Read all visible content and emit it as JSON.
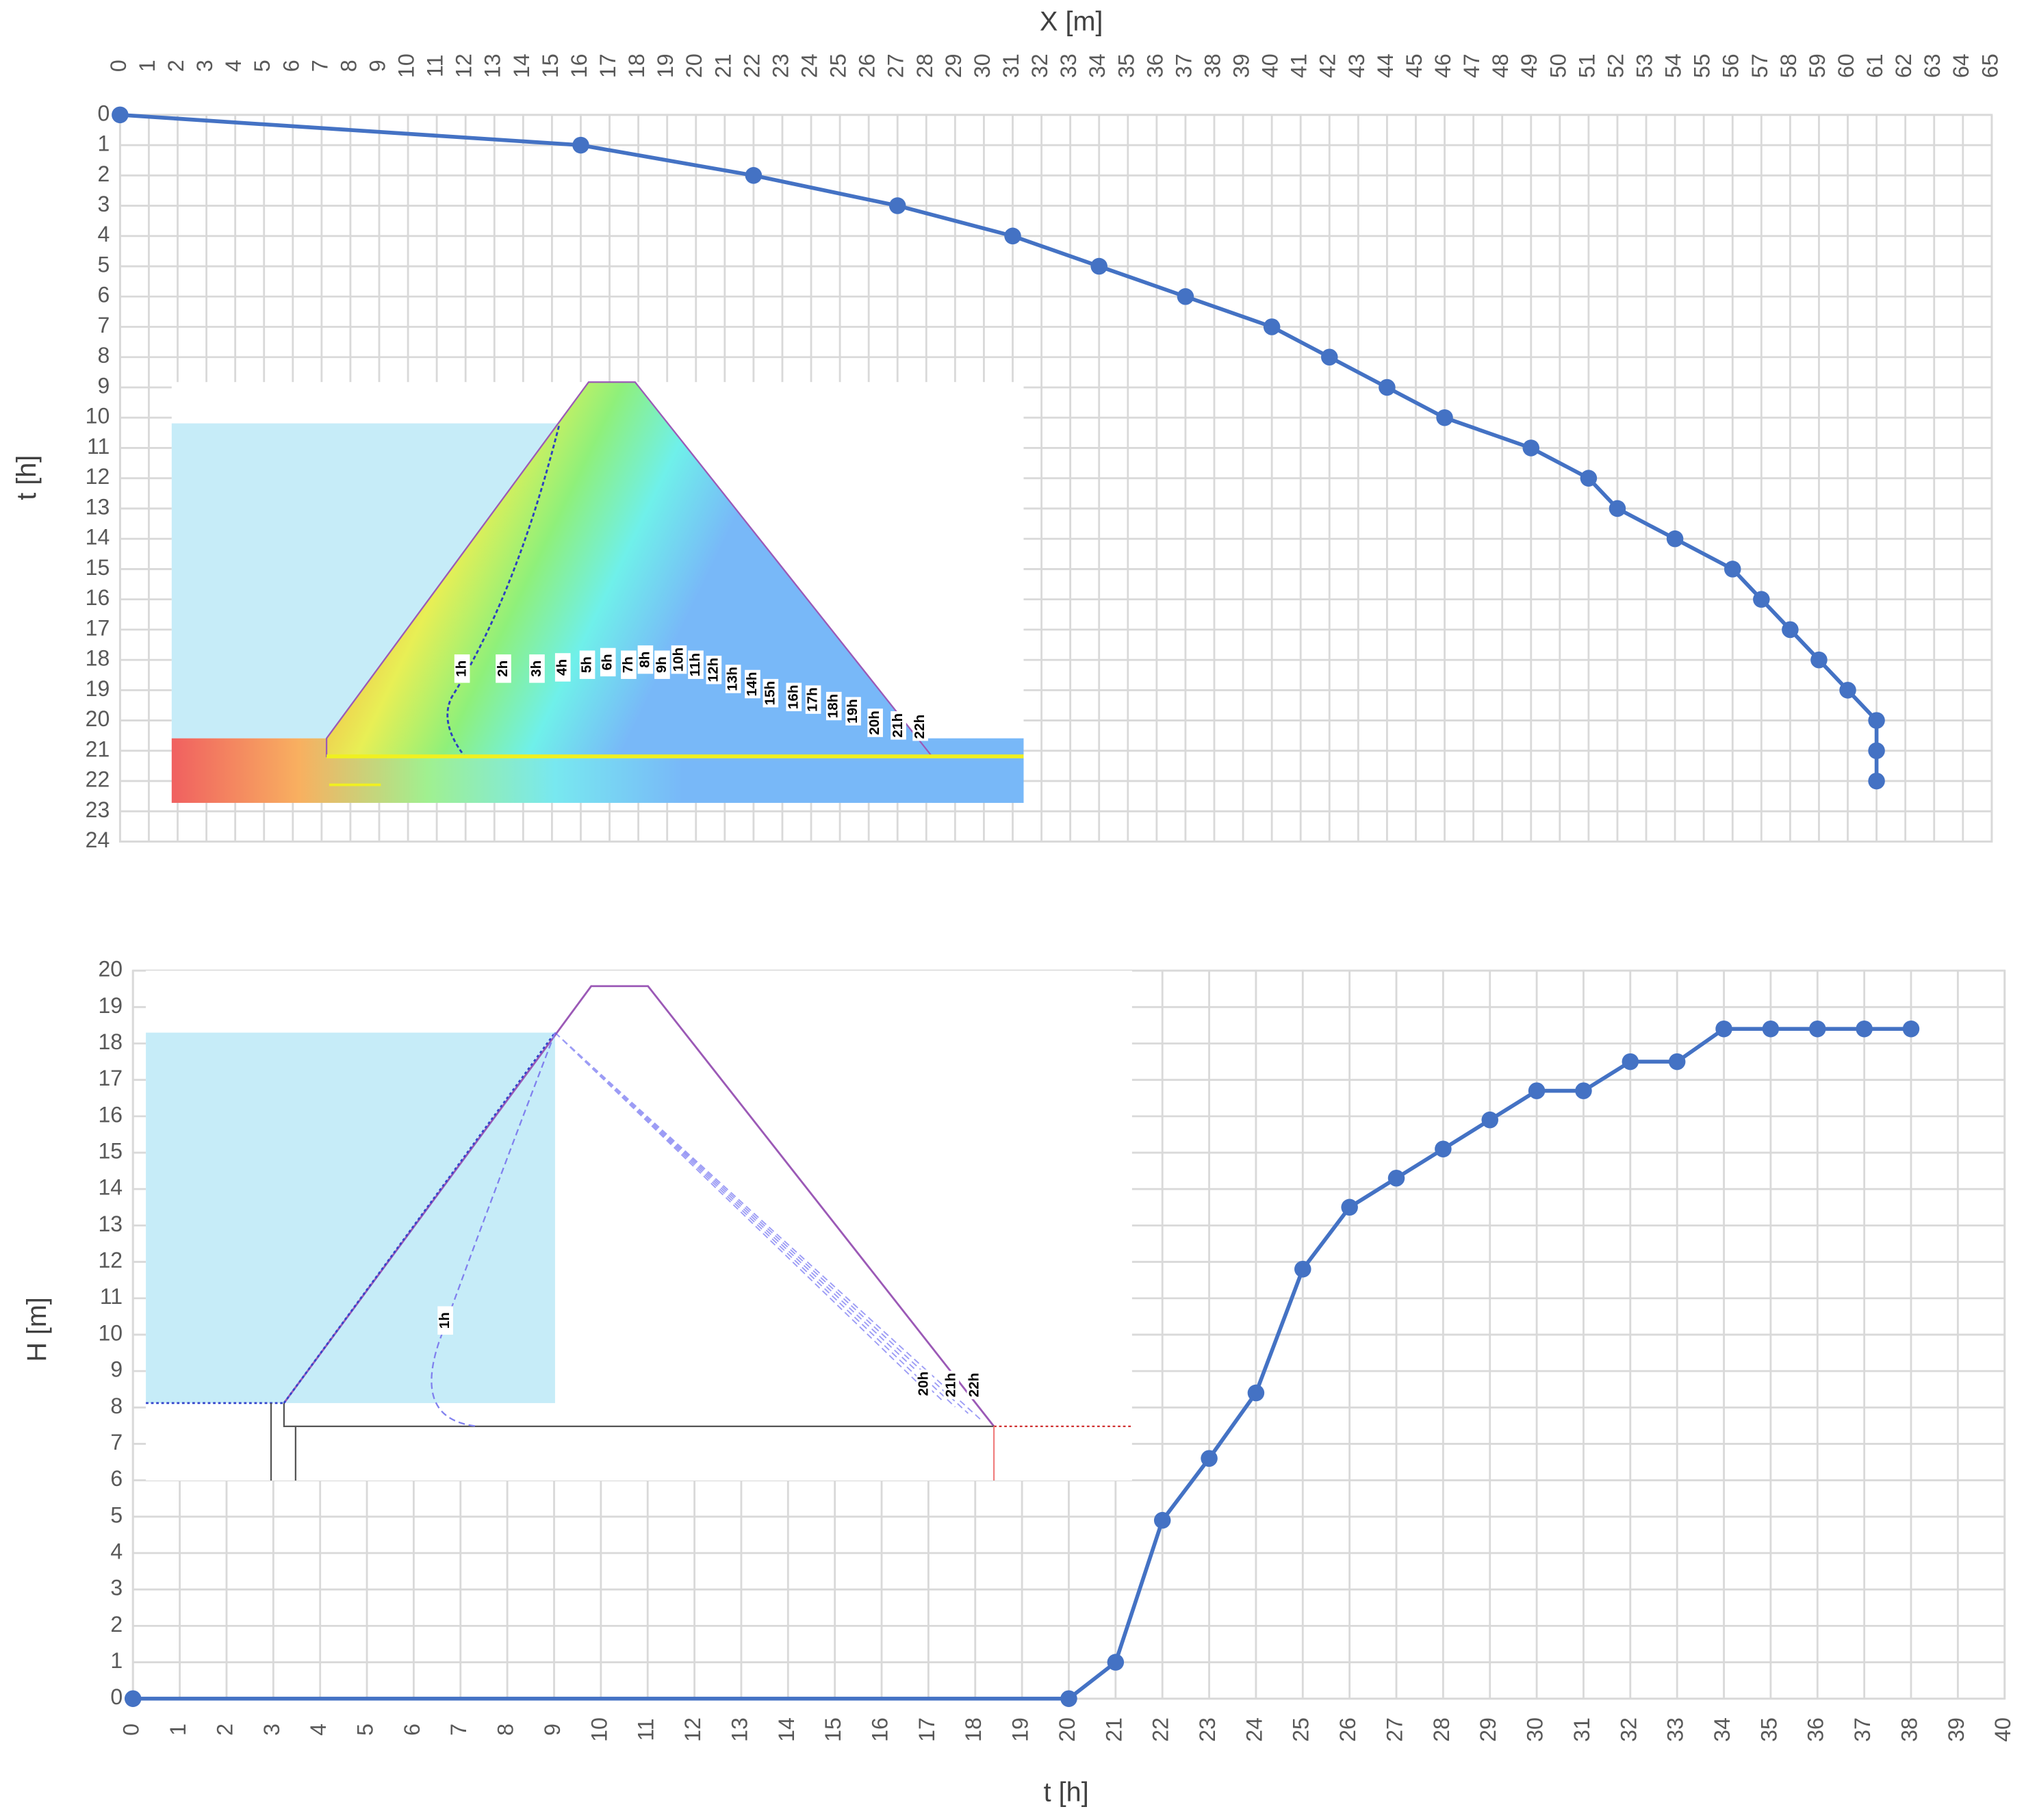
{
  "chart_data": [
    {
      "type": "line",
      "x_label": "X [m]",
      "y_label": "t [h]",
      "x_axis_position": "top",
      "y_inverted": true,
      "grid": true,
      "color": "#4472c4",
      "x": [
        0,
        16,
        22,
        27,
        31,
        34,
        37,
        40,
        42,
        44,
        46,
        49,
        51,
        52,
        54,
        56,
        57,
        58,
        59,
        60,
        61,
        61,
        61
      ],
      "values": [
        0,
        1,
        2,
        3,
        4,
        5,
        6,
        7,
        8,
        9,
        10,
        11,
        12,
        13,
        14,
        15,
        16,
        17,
        18,
        19,
        20,
        21,
        22
      ],
      "xlim": [
        0,
        65
      ],
      "xticks": [
        0,
        1,
        2,
        3,
        4,
        5,
        6,
        7,
        8,
        9,
        10,
        11,
        12,
        13,
        14,
        15,
        16,
        17,
        18,
        19,
        20,
        21,
        22,
        23,
        24,
        25,
        26,
        27,
        28,
        29,
        30,
        31,
        32,
        33,
        34,
        35,
        36,
        37,
        38,
        39,
        40,
        41,
        42,
        43,
        44,
        45,
        46,
        47,
        48,
        49,
        50,
        51,
        52,
        53,
        54,
        55,
        56,
        57,
        58,
        59,
        60,
        61,
        62,
        63,
        64,
        65
      ],
      "ylim": [
        0,
        24
      ],
      "yticks": [
        0,
        1,
        2,
        3,
        4,
        5,
        6,
        7,
        8,
        9,
        10,
        11,
        12,
        13,
        14,
        15,
        16,
        17,
        18,
        19,
        20,
        21,
        22,
        23,
        24
      ],
      "inset_labels": [
        "1h",
        "2h",
        "3h",
        "4h",
        "5h",
        "6h",
        "7h",
        "8h",
        "9h",
        "10h",
        "11h",
        "12h",
        "13h",
        "14h",
        "15h",
        "16h",
        "17h",
        "18h",
        "19h",
        "20h",
        "21h",
        "22h"
      ]
    },
    {
      "type": "line",
      "x_label": "t [h]",
      "y_label": "H [m]",
      "x_axis_position": "bottom",
      "y_inverted": false,
      "grid": true,
      "color": "#4472c4",
      "x": [
        0,
        20,
        21,
        22,
        23,
        24,
        25,
        26,
        27,
        28,
        29,
        30,
        31,
        32,
        33,
        34,
        35,
        36,
        37,
        38
      ],
      "values": [
        0,
        0,
        1,
        4.9,
        6.6,
        8.4,
        11.8,
        13.5,
        14.3,
        15.1,
        15.9,
        16.7,
        16.7,
        17.5,
        17.5,
        18.4,
        18.4,
        18.4,
        18.4,
        18.4
      ],
      "xlim": [
        0,
        40
      ],
      "xticks": [
        0,
        1,
        2,
        3,
        4,
        5,
        6,
        7,
        8,
        9,
        10,
        11,
        12,
        13,
        14,
        15,
        16,
        17,
        18,
        19,
        20,
        21,
        22,
        23,
        24,
        25,
        26,
        27,
        28,
        29,
        30,
        31,
        32,
        33,
        34,
        35,
        36,
        37,
        38,
        39,
        40
      ],
      "ylim": [
        0,
        20
      ],
      "yticks": [
        0,
        1,
        2,
        3,
        4,
        5,
        6,
        7,
        8,
        9,
        10,
        11,
        12,
        13,
        14,
        15,
        16,
        17,
        18,
        19,
        20
      ],
      "inset_labels": [
        "1h",
        "20h",
        "21h",
        "22h"
      ]
    }
  ]
}
